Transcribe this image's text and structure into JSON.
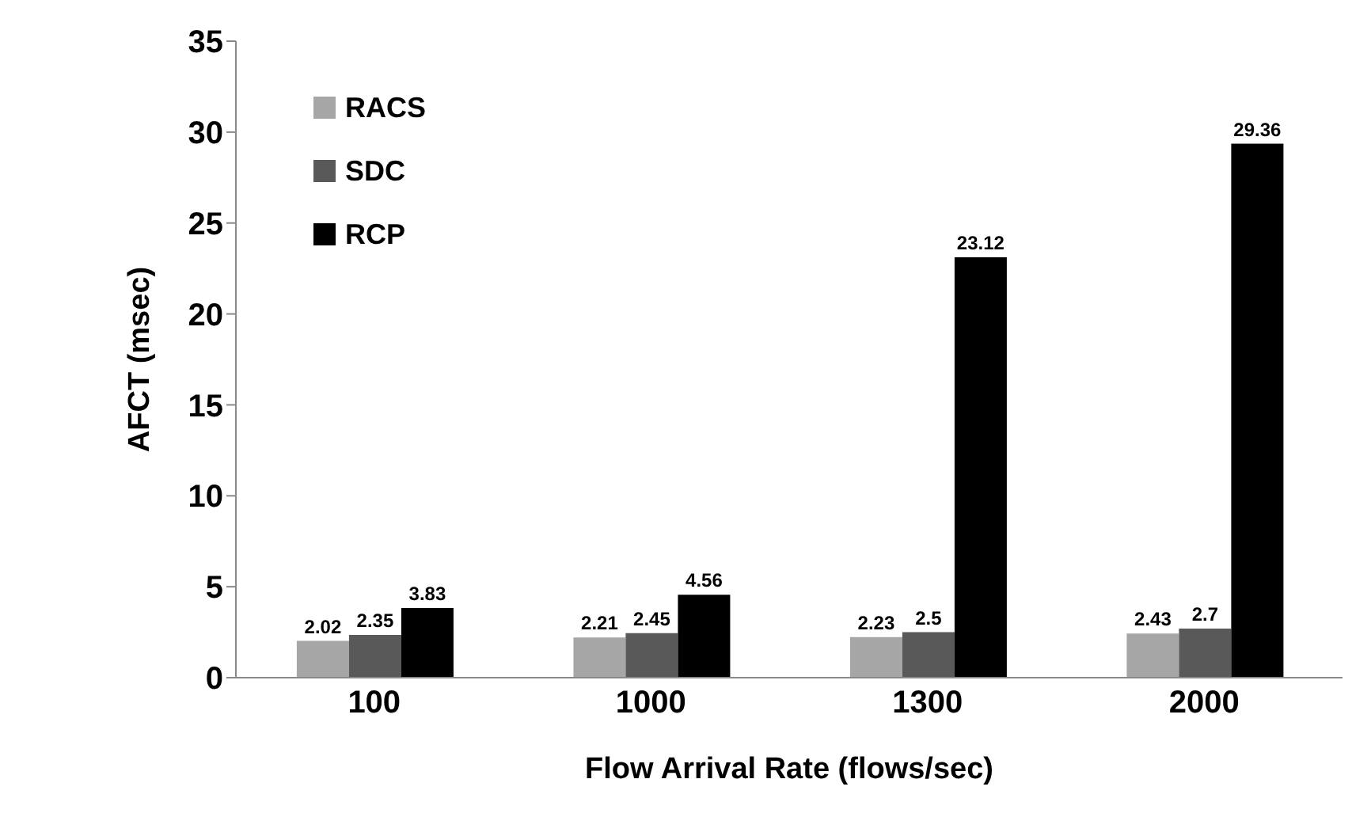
{
  "chart_data": {
    "type": "bar",
    "xlabel": "Flow Arrival Rate (flows/sec)",
    "ylabel": "AFCT (msec)",
    "categories": [
      "100",
      "1000",
      "1300",
      "2000"
    ],
    "series": [
      {
        "name": "RACS",
        "color": "#a6a6a6",
        "values": [
          2.02,
          2.21,
          2.23,
          2.43
        ]
      },
      {
        "name": "SDC",
        "color": "#595959",
        "values": [
          2.35,
          2.45,
          2.5,
          2.7
        ]
      },
      {
        "name": "RCP",
        "color": "#000000",
        "values": [
          3.83,
          4.56,
          23.12,
          29.36
        ]
      }
    ],
    "ylim": [
      0,
      35
    ],
    "yticks": [
      0,
      5,
      10,
      15,
      20,
      25,
      30,
      35
    ],
    "grid": false,
    "legend": "top left",
    "data_labels": true
  }
}
